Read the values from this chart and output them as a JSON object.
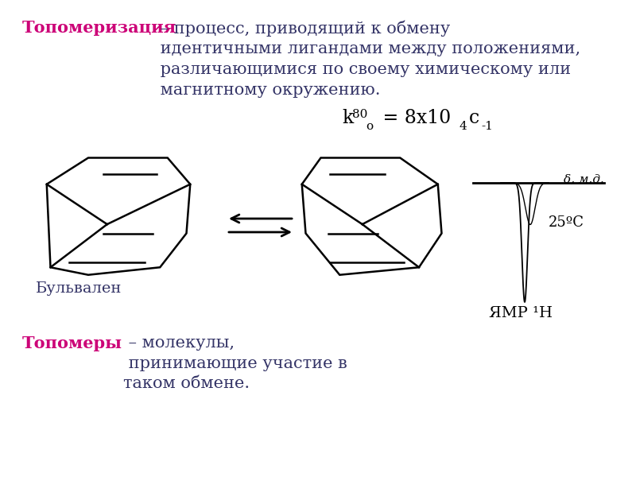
{
  "bg_color": "#ffffff",
  "bold_color": "#cc0077",
  "regular_color": "#333366",
  "title_bold": "Топомеризация",
  "title_regular": " – процесс, приводящий к обмену\n идентичными лигандами между положениями,\n различающимися по своему химическому или\n магнитному окружению.",
  "label_bulvalen": "Бульвален",
  "nmr_title": "ЯМР ¹H",
  "nmr_temp": "25ºC",
  "nmr_xlabel": "δ, м.д.",
  "bottom_bold": "Топомеры",
  "bottom_regular": " – молекулы,\n принимающие участие в\nтаком обмене."
}
